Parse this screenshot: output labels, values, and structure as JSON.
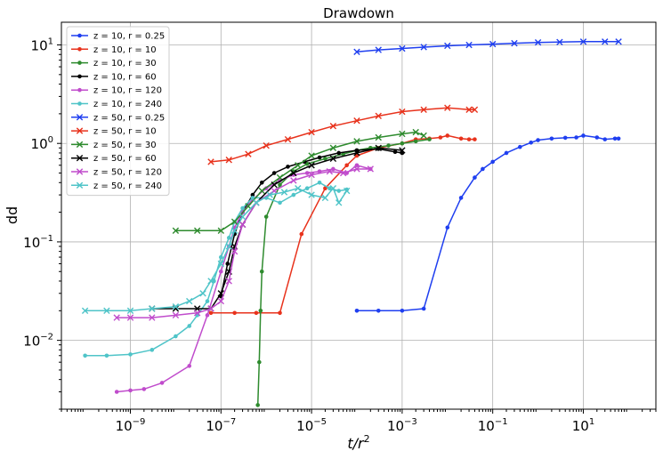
{
  "chart_data": {
    "type": "line",
    "title": "Drawdown",
    "xlabel": "t/r",
    "xlabel_superscript": "2",
    "ylabel": "dd",
    "xscale": "log",
    "yscale": "log",
    "xlim": [
      3e-11,
      400
    ],
    "ylim": [
      0.002,
      17
    ],
    "grid": true,
    "legend_position": "top-left",
    "x_ticks": [
      {
        "value": 1e-09,
        "base": "10",
        "exp": "−9"
      },
      {
        "value": 1e-07,
        "base": "10",
        "exp": "−7"
      },
      {
        "value": 1e-05,
        "base": "10",
        "exp": "−5"
      },
      {
        "value": 0.001,
        "base": "10",
        "exp": "−3"
      },
      {
        "value": 0.1,
        "base": "10",
        "exp": "−1"
      },
      {
        "value": 10,
        "base": "10",
        "exp": "1"
      }
    ],
    "y_ticks": [
      {
        "value": 0.01,
        "base": "10",
        "exp": "−2"
      },
      {
        "value": 0.1,
        "base": "10",
        "exp": "−1"
      },
      {
        "value": 1,
        "base": "10",
        "exp": "0"
      },
      {
        "value": 10,
        "base": "10",
        "exp": "1"
      }
    ],
    "series": [
      {
        "name": "z = 10, r = 0.25",
        "color": "#1f3ff0",
        "marker": "dot",
        "x": [
          0.0001,
          0.0003,
          0.001,
          0.003,
          0.01,
          0.02,
          0.04,
          0.06,
          0.1,
          0.2,
          0.4,
          0.7,
          1,
          2,
          4,
          7,
          10,
          20,
          30,
          50,
          60
        ],
        "y": [
          0.02,
          0.02,
          0.02,
          0.021,
          0.14,
          0.28,
          0.45,
          0.55,
          0.65,
          0.8,
          0.92,
          1.02,
          1.08,
          1.12,
          1.14,
          1.15,
          1.2,
          1.15,
          1.1,
          1.12,
          1.12
        ]
      },
      {
        "name": "z = 10, r = 10",
        "color": "#e8321c",
        "marker": "dot",
        "x": [
          6e-08,
          2e-07,
          6e-07,
          2e-06,
          6e-06,
          2e-05,
          6e-05,
          0.0001,
          0.0003,
          0.001,
          0.002,
          0.004,
          0.007,
          0.01,
          0.02,
          0.03,
          0.04
        ],
        "y": [
          0.019,
          0.019,
          0.019,
          0.019,
          0.12,
          0.35,
          0.6,
          0.75,
          0.9,
          1.0,
          1.1,
          1.12,
          1.15,
          1.2,
          1.12,
          1.1,
          1.1
        ]
      },
      {
        "name": "z = 10, r = 30",
        "color": "#2e8b2e",
        "marker": "dot",
        "x": [
          6.5e-07,
          7e-07,
          7.5e-07,
          8e-07,
          1e-06,
          2e-06,
          4e-06,
          8e-06,
          2e-05,
          5e-05,
          0.0001,
          0.0002,
          0.0005,
          0.001,
          0.002,
          0.004
        ],
        "y": [
          0.0022,
          0.006,
          0.02,
          0.05,
          0.18,
          0.38,
          0.52,
          0.62,
          0.7,
          0.78,
          0.85,
          0.9,
          0.95,
          1.0,
          1.05,
          1.1
        ]
      },
      {
        "name": "z = 10, r = 60",
        "color": "#000000",
        "marker": "dot",
        "x": [
          1e-07,
          1.4e-07,
          2e-07,
          3e-07,
          5e-07,
          8e-07,
          1.5e-06,
          3e-06,
          7e-06,
          1.5e-05,
          4e-05,
          0.0001,
          0.0003,
          0.0007,
          0.001
        ],
        "y": [
          0.028,
          0.06,
          0.12,
          0.2,
          0.3,
          0.4,
          0.5,
          0.58,
          0.65,
          0.72,
          0.8,
          0.85,
          0.88,
          0.82,
          0.8
        ]
      },
      {
        "name": "z = 10, r = 120",
        "color": "#c04ccc",
        "marker": "dot",
        "x": [
          5e-10,
          1e-09,
          2e-09,
          5e-09,
          2e-08,
          5e-08,
          1e-07,
          1.5e-07,
          2e-07,
          3e-07,
          5e-07,
          1e-06,
          2e-06,
          4e-06,
          8e-06,
          1.5e-05,
          3e-05,
          6e-05,
          0.0001,
          0.0002
        ],
        "y": [
          0.003,
          0.0031,
          0.0032,
          0.0037,
          0.0055,
          0.018,
          0.05,
          0.09,
          0.14,
          0.2,
          0.27,
          0.35,
          0.42,
          0.48,
          0.5,
          0.52,
          0.55,
          0.5,
          0.6,
          0.55
        ]
      },
      {
        "name": "z = 10, r = 240",
        "color": "#4fc4c8",
        "marker": "dot",
        "x": [
          1e-10,
          3e-10,
          1e-09,
          3e-09,
          1e-08,
          2e-08,
          3e-08,
          5e-08,
          7e-08,
          1e-07,
          1.5e-07,
          2e-07,
          3e-07,
          5e-07,
          1e-06,
          2e-06,
          4e-06,
          8e-06,
          1.5e-05,
          2.5e-05,
          4e-05,
          6e-05
        ],
        "y": [
          0.007,
          0.007,
          0.0072,
          0.008,
          0.011,
          0.014,
          0.018,
          0.025,
          0.04,
          0.07,
          0.11,
          0.16,
          0.22,
          0.28,
          0.28,
          0.25,
          0.3,
          0.35,
          0.4,
          0.35,
          0.33,
          0.34
        ]
      },
      {
        "name": "z = 50, r = 0.25",
        "color": "#1f3ff0",
        "marker": "x",
        "x": [
          0.0001,
          0.0003,
          0.001,
          0.003,
          0.01,
          0.03,
          0.1,
          0.3,
          1,
          3,
          10,
          30,
          60
        ],
        "y": [
          8.5,
          8.9,
          9.2,
          9.5,
          9.8,
          10.0,
          10.2,
          10.4,
          10.6,
          10.7,
          10.8,
          10.8,
          10.8
        ]
      },
      {
        "name": "z = 50, r = 10",
        "color": "#e8321c",
        "marker": "x",
        "x": [
          6e-08,
          1.5e-07,
          4e-07,
          1e-06,
          3e-06,
          1e-05,
          3e-05,
          0.0001,
          0.0003,
          0.001,
          0.003,
          0.01,
          0.03,
          0.04
        ],
        "y": [
          0.65,
          0.68,
          0.78,
          0.95,
          1.1,
          1.3,
          1.5,
          1.7,
          1.9,
          2.1,
          2.2,
          2.3,
          2.2,
          2.2
        ]
      },
      {
        "name": "z = 50, r = 30",
        "color": "#2e8b2e",
        "marker": "x",
        "x": [
          1e-08,
          3e-08,
          1e-07,
          2e-07,
          4e-07,
          8e-07,
          2e-06,
          5e-06,
          1e-05,
          3e-05,
          0.0001,
          0.0003,
          0.001,
          0.002,
          0.003
        ],
        "y": [
          0.13,
          0.13,
          0.13,
          0.16,
          0.23,
          0.33,
          0.45,
          0.6,
          0.75,
          0.9,
          1.05,
          1.15,
          1.25,
          1.3,
          1.2
        ]
      },
      {
        "name": "z = 50, r = 60",
        "color": "#000000",
        "marker": "x",
        "x": [
          3e-09,
          1e-08,
          3e-08,
          6e-08,
          1e-07,
          1.5e-07,
          2e-07,
          3e-07,
          6e-07,
          1.5e-06,
          4e-06,
          1e-05,
          3e-05,
          0.0001,
          0.0003,
          0.001
        ],
        "y": [
          0.021,
          0.021,
          0.021,
          0.021,
          0.03,
          0.05,
          0.09,
          0.15,
          0.25,
          0.38,
          0.5,
          0.6,
          0.7,
          0.8,
          0.9,
          0.85
        ]
      },
      {
        "name": "z = 50, r = 120",
        "color": "#c04ccc",
        "marker": "x",
        "x": [
          5e-10,
          1e-09,
          3e-09,
          1e-08,
          3e-08,
          6e-08,
          1e-07,
          1.5e-07,
          2e-07,
          3e-07,
          6e-07,
          1.5e-06,
          4e-06,
          1e-05,
          2.5e-05,
          5e-05,
          0.0001,
          0.0002
        ],
        "y": [
          0.017,
          0.017,
          0.017,
          0.018,
          0.019,
          0.021,
          0.025,
          0.04,
          0.08,
          0.15,
          0.25,
          0.33,
          0.42,
          0.48,
          0.52,
          0.5,
          0.55,
          0.55
        ]
      },
      {
        "name": "z = 50, r = 240",
        "color": "#4fc4c8",
        "marker": "x",
        "x": [
          1e-10,
          3e-10,
          1e-09,
          3e-09,
          1e-08,
          2e-08,
          4e-08,
          6e-08,
          1e-07,
          1.5e-07,
          2e-07,
          3e-07,
          6e-07,
          1.2e-06,
          2.5e-06,
          5e-06,
          1e-05,
          2e-05,
          3e-05,
          4e-05,
          6e-05
        ],
        "y": [
          0.02,
          0.02,
          0.02,
          0.021,
          0.022,
          0.025,
          0.03,
          0.04,
          0.06,
          0.09,
          0.13,
          0.18,
          0.25,
          0.3,
          0.32,
          0.35,
          0.3,
          0.28,
          0.35,
          0.25,
          0.33
        ]
      }
    ]
  }
}
